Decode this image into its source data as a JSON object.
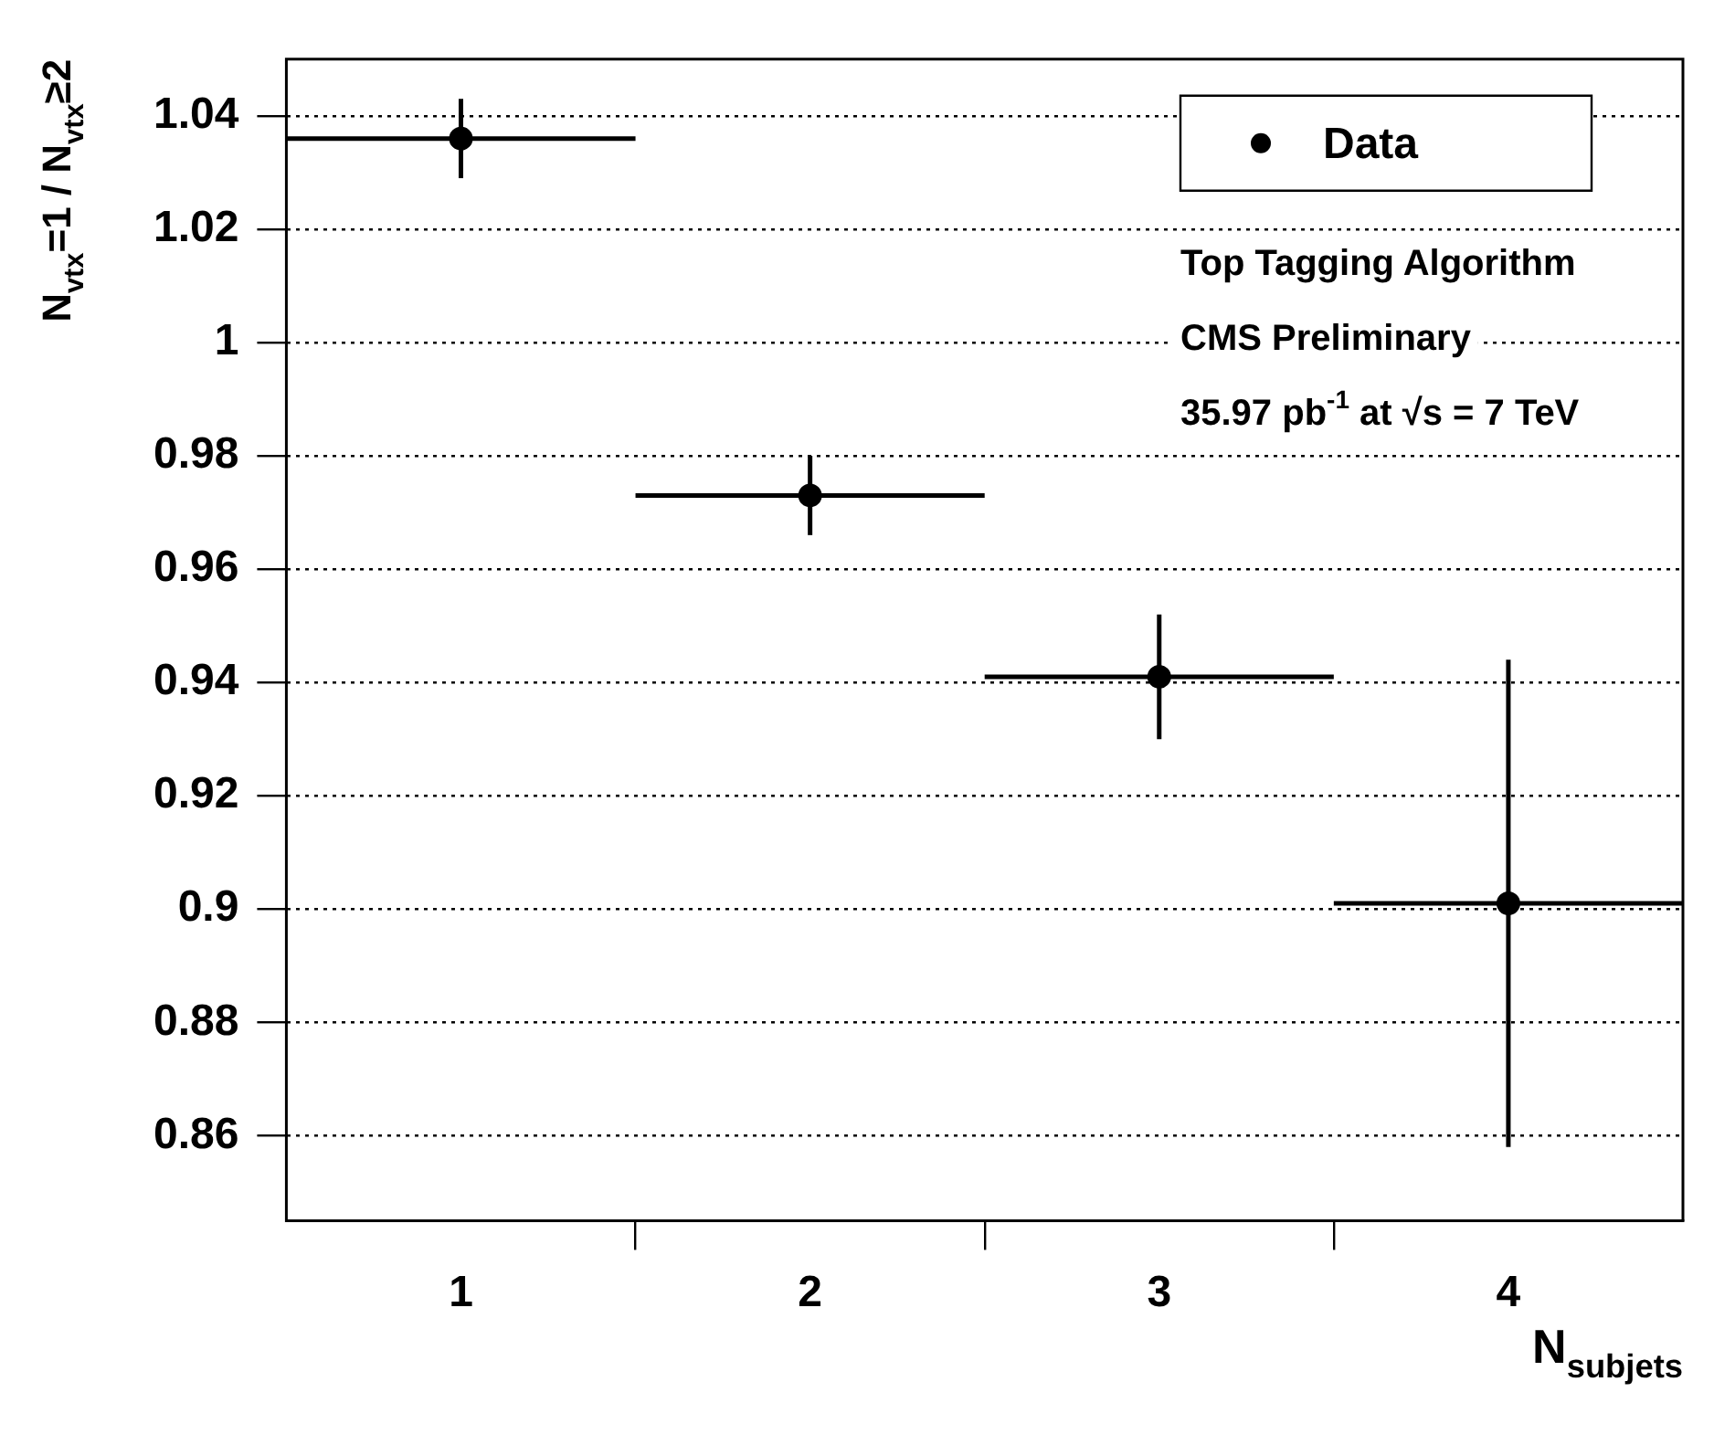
{
  "chart_data": {
    "type": "scatter",
    "xlabel": "N$_{subjets}$",
    "ylabel": "N$_{vtx}$=1 / N$_{vtx}$≥2",
    "x": [
      1,
      2,
      3,
      4
    ],
    "series": [
      {
        "name": "Data",
        "color": "#000000",
        "values": [
          1.036,
          0.973,
          0.941,
          0.901
        ],
        "errors": [
          0.007,
          0.007,
          0.011,
          0.043
        ],
        "xerrors": [
          0.5,
          0.5,
          0.5,
          0.5
        ]
      }
    ],
    "xlim": [
      0.5,
      4.5
    ],
    "xticks": [
      1,
      {
        "value": 1.5,
        "label": null
      },
      2,
      {
        "value": 2.5,
        "label": null
      },
      3,
      {
        "value": 3.5,
        "label": null
      },
      4
    ],
    "ylim": [
      0.845,
      1.05
    ],
    "yticks": [
      0.86,
      0.88,
      0.9,
      0.92,
      0.94,
      0.96,
      0.98,
      1,
      1.02,
      1.04
    ],
    "grid": "y",
    "legend": "top right",
    "marker": "circle",
    "annotations": [
      "Top Tagging Algorithm",
      "CMS Preliminary",
      "35.97 pb$^{-1}$ at √s = 7 TeV"
    ]
  }
}
